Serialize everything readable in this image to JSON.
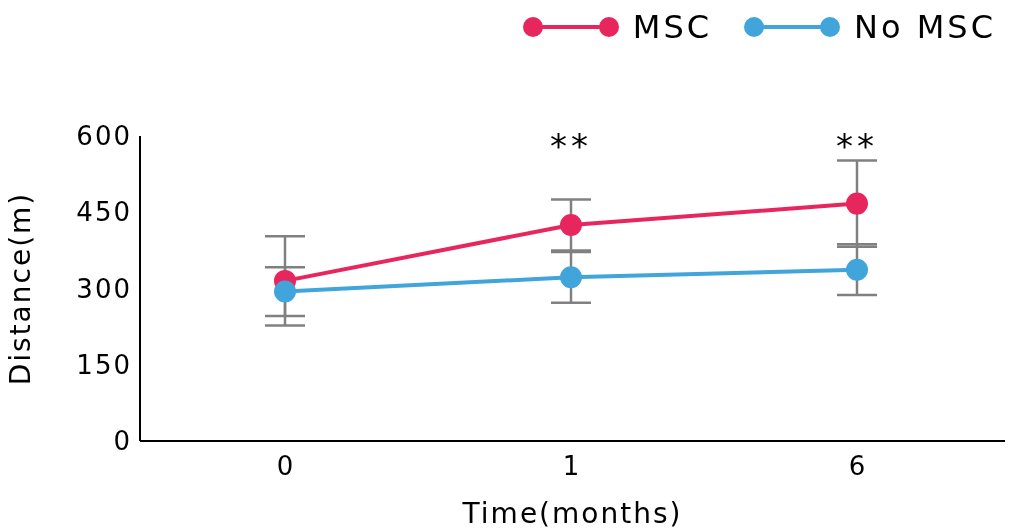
{
  "chart_data": {
    "type": "line",
    "xlabel": "Time(months)",
    "ylabel": "Distance(m)",
    "categories": [
      "0",
      "1",
      "6"
    ],
    "series": [
      {
        "name": "MSC",
        "color": "#e8265e",
        "values": [
          315,
          425,
          467
        ],
        "errors": [
          88,
          50,
          85
        ]
      },
      {
        "name": "No MSC",
        "color": "#41a5dc",
        "values": [
          294,
          322,
          337
        ],
        "errors": [
          48,
          50,
          50
        ]
      }
    ],
    "ylim": [
      0,
      600
    ],
    "yticks": [
      0,
      150,
      300,
      450,
      600
    ],
    "grid": false,
    "legend": "top right",
    "marker": "circle",
    "line_style": "solid",
    "annotations": [
      "**",
      "**"
    ]
  }
}
